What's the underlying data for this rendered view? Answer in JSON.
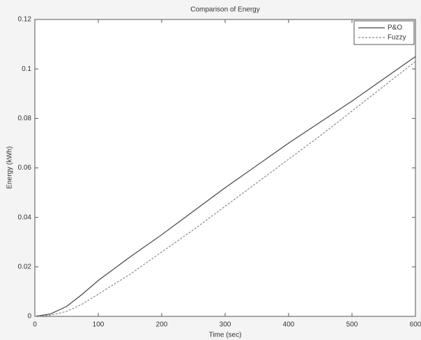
{
  "chart_data": {
    "type": "line",
    "title": "Comparison of Energy",
    "x_label": "Time (sec)",
    "y_label": "Energy (kWh)",
    "x": [
      0,
      25,
      50,
      75,
      100,
      150,
      200,
      250,
      300,
      350,
      400,
      450,
      500,
      550,
      600
    ],
    "series": [
      {
        "name": "P&O",
        "color": "#444444",
        "dash": "none",
        "values": [
          0,
          0.001,
          0.004,
          0.009,
          0.0145,
          0.024,
          0.033,
          0.0425,
          0.052,
          0.061,
          0.07,
          0.0785,
          0.087,
          0.096,
          0.105
        ]
      },
      {
        "name": "Fuzzy",
        "color": "#8a8a8a",
        "dash": "3,2",
        "values": [
          0,
          0.0005,
          0.002,
          0.005,
          0.009,
          0.017,
          0.026,
          0.035,
          0.0445,
          0.054,
          0.0635,
          0.073,
          0.083,
          0.093,
          0.103
        ]
      }
    ],
    "xlim": [
      0,
      600
    ],
    "xticks": [
      0,
      100,
      200,
      300,
      400,
      500,
      600
    ],
    "ylim": [
      0,
      0.12
    ],
    "yticks": [
      0,
      0.02,
      0.04,
      0.06,
      0.08,
      0.1,
      0.12
    ],
    "legend": "top-right"
  }
}
